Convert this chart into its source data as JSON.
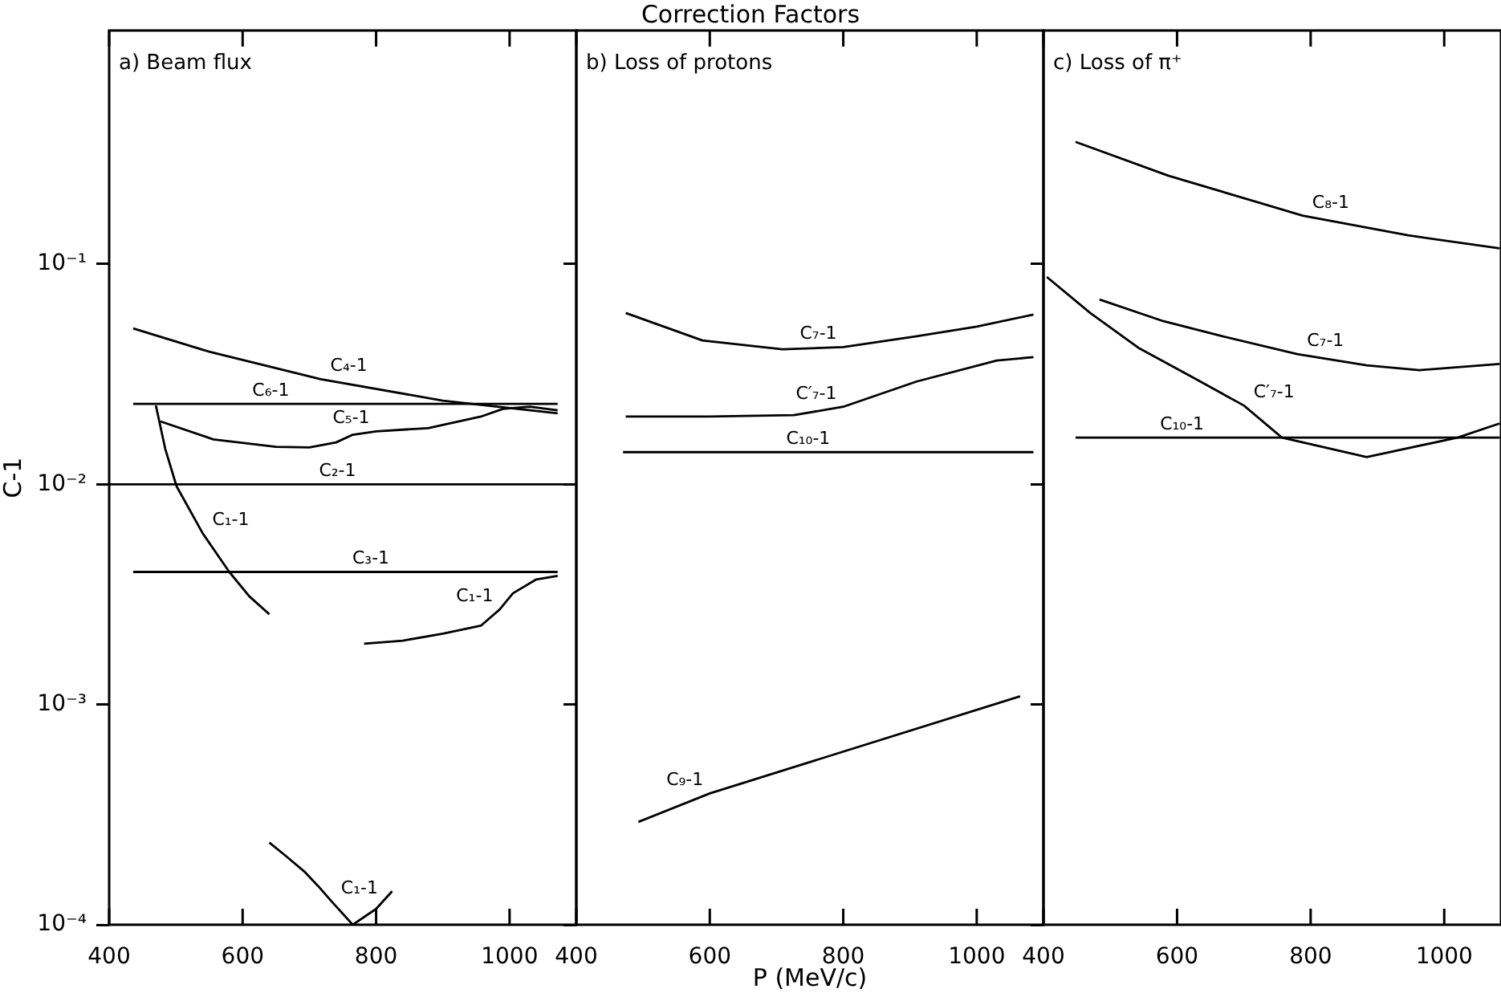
{
  "chart_data": [
    {
      "type": "line",
      "title": "a) Beam flux",
      "ylabel": "C-1",
      "xlim": [
        400,
        1100
      ],
      "xticks": [
        400,
        600,
        800,
        1000
      ],
      "ylim": [
        0.0001,
        1.15
      ],
      "log": "y",
      "yticks": [
        {
          "value": 0.0001,
          "label": "10⁻⁴"
        },
        {
          "value": 0.001,
          "label": "10⁻³"
        },
        {
          "value": 0.01,
          "label": "10⁻²"
        },
        {
          "value": 0.1,
          "label": "10⁻¹"
        }
      ],
      "grid": false,
      "legend": false,
      "series": [
        {
          "name": "C₄-1",
          "color": "#000000",
          "x": [
            436,
            550,
            717,
            900,
            1072
          ],
          "values": [
            0.051,
            0.04,
            0.03,
            0.024,
            0.021
          ]
        },
        {
          "name": "C₆-1",
          "color": "#000000",
          "x": [
            436,
            600,
            1072
          ],
          "values": [
            0.0232,
            0.0232,
            0.0232
          ]
        },
        {
          "name": "C₅-1",
          "color": "#000000",
          "x": [
            477,
            556,
            650,
            700,
            740,
            765,
            800,
            878,
            957,
            990,
            1030,
            1072
          ],
          "values": [
            0.0193,
            0.016,
            0.0148,
            0.0147,
            0.0155,
            0.0168,
            0.0174,
            0.018,
            0.0203,
            0.022,
            0.0225,
            0.0217
          ]
        },
        {
          "name": "C₂-1",
          "color": "#000000",
          "x": [
            400,
            700,
            1100
          ],
          "values": [
            0.01,
            0.01,
            0.01
          ]
        },
        {
          "name": "C₃-1",
          "color": "#000000",
          "x": [
            436,
            750,
            1072
          ],
          "values": [
            0.004,
            0.004,
            0.004
          ]
        },
        {
          "name": "C₁-1",
          "color": "#000000",
          "x": [
            470,
            484,
            501,
            540,
            580,
            610,
            640
          ],
          "values": [
            0.0228,
            0.0145,
            0.0098,
            0.006,
            0.004,
            0.0031,
            0.00257
          ]
        },
        {
          "name": "C₁-1",
          "color": "#000000",
          "x": [
            782,
            840,
            900,
            957,
            985,
            1005,
            1040,
            1072
          ],
          "values": [
            0.00189,
            0.00195,
            0.0021,
            0.00228,
            0.0027,
            0.0032,
            0.0037,
            0.00384
          ]
        },
        {
          "name": "C₁-1",
          "color": "#000000",
          "x": [
            640,
            665,
            692,
            713,
            733,
            765,
            800,
            824
          ],
          "values": [
            0.000236,
            0.000205,
            0.000175,
            0.00015,
            0.000128,
            0.0001,
            0.000118,
            0.000142
          ]
        }
      ]
    },
    {
      "type": "line",
      "title": "b) Loss of protons",
      "xlabel": "P (MeV/c)",
      "annotations": [
        "Correction Factors"
      ],
      "xlim": [
        400,
        1100
      ],
      "xticks": [
        400,
        600,
        800,
        1000
      ],
      "ylim": [
        0.0001,
        1.15
      ],
      "log": "y",
      "yticks": [
        {
          "value": 0.0001,
          "label": null
        },
        {
          "value": 0.001,
          "label": null
        },
        {
          "value": 0.01,
          "label": null
        },
        {
          "value": 0.1,
          "label": null
        }
      ],
      "tick_labels": "x",
      "grid": false,
      "legend": false,
      "series": [
        {
          "name": "C₇-1",
          "color": "#000000",
          "x": [
            474,
            589,
            709,
            800,
            910,
            1000,
            1085
          ],
          "values": [
            0.06,
            0.045,
            0.041,
            0.042,
            0.047,
            0.052,
            0.059
          ]
        },
        {
          "name": "C′₇-1",
          "color": "#000000",
          "x": [
            474,
            600,
            726,
            800,
            910,
            1030,
            1085
          ],
          "values": [
            0.0203,
            0.0203,
            0.0206,
            0.0225,
            0.0293,
            0.0365,
            0.0378
          ]
        },
        {
          "name": "C₁₀-1",
          "color": "#000000",
          "x": [
            470,
            700,
            1085
          ],
          "values": [
            0.014,
            0.014,
            0.014
          ]
        },
        {
          "name": "C₉-1",
          "color": "#000000",
          "x": [
            493,
            600,
            1065
          ],
          "values": [
            0.000293,
            0.000395,
            0.00109
          ]
        }
      ]
    },
    {
      "type": "line",
      "title": "c) Loss of π⁺",
      "xlim": [
        400,
        1085
      ],
      "xticks": [
        400,
        600,
        800,
        1000
      ],
      "ylim": [
        0.0001,
        1.15
      ],
      "log": "y",
      "yticks": [
        {
          "value": 0.0001,
          "label": null
        },
        {
          "value": 0.001,
          "label": null
        },
        {
          "value": 0.01,
          "label": null
        },
        {
          "value": 0.1,
          "label": null
        }
      ],
      "tick_labels": "x",
      "grid": false,
      "legend": false,
      "series": [
        {
          "name": "C₈-1",
          "color": "#000000",
          "x": [
            448,
            587,
            788,
            946,
            1083
          ],
          "values": [
            0.359,
            0.252,
            0.166,
            0.135,
            0.118
          ]
        },
        {
          "name": "C₇-1",
          "color": "#000000",
          "x": [
            484,
            580,
            668,
            780,
            884,
            963,
            1083
          ],
          "values": [
            0.069,
            0.055,
            0.047,
            0.039,
            0.0347,
            0.033,
            0.0352
          ]
        },
        {
          "name": "C′₇-1",
          "color": "#000000",
          "x": [
            405,
            470,
            542,
            620,
            700,
            757,
            884,
            1020,
            1083
          ],
          "values": [
            0.0874,
            0.06,
            0.0417,
            0.031,
            0.0228,
            0.0163,
            0.0133,
            0.0163,
            0.0189
          ]
        },
        {
          "name": "C₁₀-1",
          "color": "#000000",
          "x": [
            448,
            560,
            1083
          ],
          "values": [
            0.0163,
            0.0163,
            0.0163
          ]
        }
      ]
    }
  ]
}
